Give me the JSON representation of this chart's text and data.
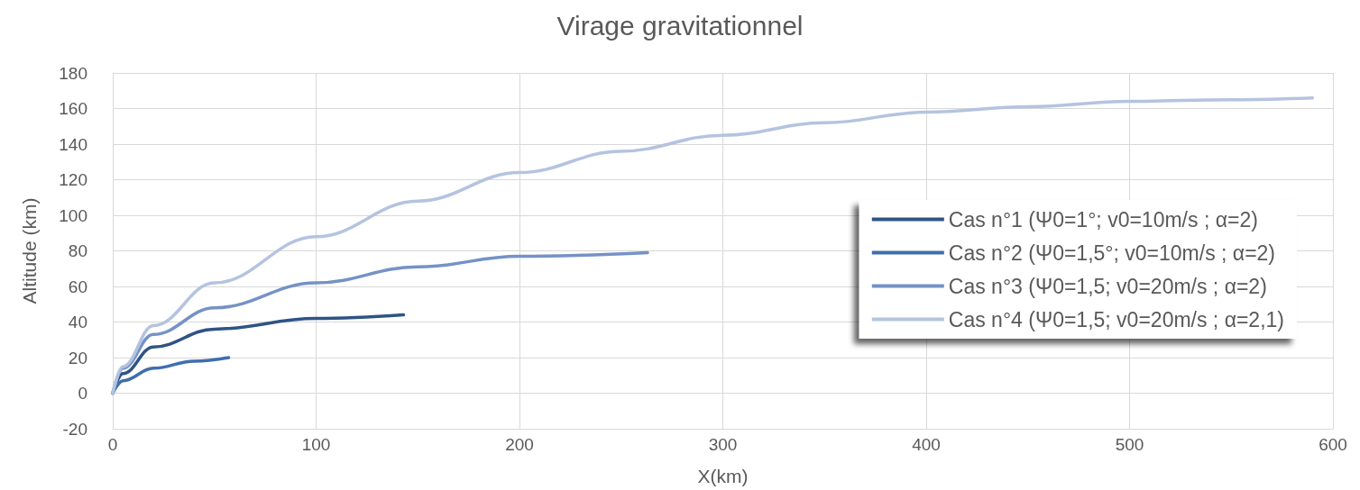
{
  "chart_data": {
    "type": "line",
    "title": "Virage gravitationnel",
    "xlabel": "X(km)",
    "ylabel": "Altitude (km)",
    "xlim": [
      0,
      600
    ],
    "xticks": [
      0,
      100,
      200,
      300,
      400,
      500,
      600
    ],
    "ylim": [
      -20,
      180
    ],
    "yticks": [
      -20,
      0,
      20,
      40,
      60,
      80,
      100,
      120,
      140,
      160,
      180
    ],
    "grid": true,
    "legend": "right",
    "marker": "none",
    "line_style": "solid",
    "series": [
      {
        "name": "Cas n°1 (Ψ0=1°; v0=10m/s ; α=2)",
        "color": "#2e5484",
        "x": [
          0,
          5,
          20,
          50,
          100,
          143
        ],
        "values": [
          0,
          11,
          26,
          36,
          42,
          44
        ]
      },
      {
        "name": "Cas n°2 (Ψ0=1,5°; v0=10m/s ; α=2)",
        "color": "#3f6ead",
        "x": [
          0,
          5,
          20,
          40,
          57
        ],
        "values": [
          0,
          7,
          14,
          18,
          20
        ]
      },
      {
        "name": "Cas n°3 (Ψ0=1,5; v0=20m/s ; α=2)",
        "color": "#7592c6",
        "x": [
          0,
          5,
          20,
          50,
          100,
          150,
          200,
          263
        ],
        "values": [
          0,
          14,
          33,
          48,
          62,
          71,
          77,
          79
        ]
      },
      {
        "name": "Cas n°4 (Ψ0=1,5; v0=20m/s ; α=2,1)",
        "color": "#b4c3e0",
        "x": [
          0,
          5,
          20,
          50,
          100,
          150,
          200,
          250,
          300,
          350,
          400,
          450,
          500,
          550,
          590
        ],
        "values": [
          0,
          15,
          38,
          62,
          88,
          108,
          124,
          136,
          145,
          152,
          158,
          161,
          164,
          165,
          166
        ]
      }
    ]
  }
}
